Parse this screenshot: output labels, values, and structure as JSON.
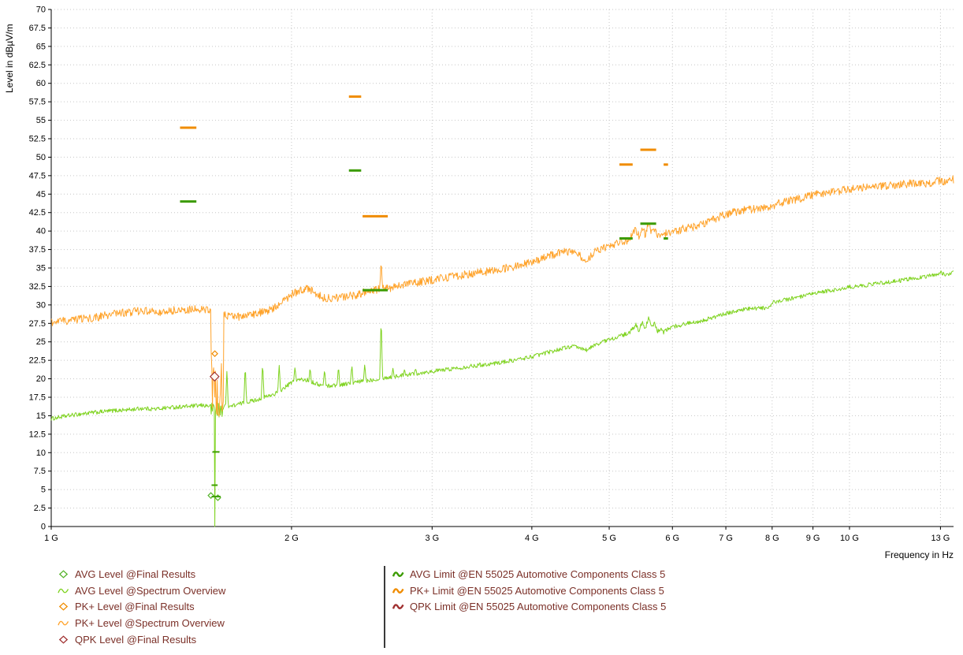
{
  "colors": {
    "grid": "#c6c6c6",
    "axis": "#000000",
    "background": "#ffffff"
  },
  "axes": {
    "y": {
      "title": "Level in dBµV/m",
      "min": 0,
      "max": 70,
      "step": 2.5,
      "tick_labels": [
        "0",
        "2.5",
        "5",
        "7.5",
        "10",
        "12.5",
        "15",
        "17.5",
        "20",
        "22.5",
        "25",
        "27.5",
        "30",
        "32.5",
        "35",
        "37.5",
        "40",
        "42.5",
        "45",
        "47.5",
        "50",
        "52.5",
        "55",
        "57.5",
        "60",
        "62.5",
        "65",
        "67.5",
        "70"
      ]
    },
    "x": {
      "title": "Frequency in Hz",
      "scale": "log",
      "min_hz": 1000000000.0,
      "max_hz": 13500000000.0,
      "ticks": [
        {
          "hz": 1000000000.0,
          "label": "1 G"
        },
        {
          "hz": 2000000000.0,
          "label": "2 G"
        },
        {
          "hz": 3000000000.0,
          "label": "3 G"
        },
        {
          "hz": 4000000000.0,
          "label": "4 G"
        },
        {
          "hz": 5000000000.0,
          "label": "5 G"
        },
        {
          "hz": 6000000000.0,
          "label": "6 G"
        },
        {
          "hz": 7000000000.0,
          "label": "7 G"
        },
        {
          "hz": 8000000000.0,
          "label": "8 G"
        },
        {
          "hz": 9000000000.0,
          "label": "9 G"
        },
        {
          "hz": 10000000000.0,
          "label": "10 G"
        },
        {
          "hz": 13000000000.0,
          "label": "13 G"
        }
      ]
    }
  },
  "chart_data": {
    "type": "line",
    "title": "",
    "x_unit": "GHz",
    "y_unit": "dBµV/m",
    "xlim_ghz": [
      1,
      13.5
    ],
    "ylim_db": [
      0,
      70
    ],
    "grid": "dotted",
    "series": [
      {
        "name": "AVG Level @Spectrum Overview",
        "color": "#7FD320",
        "noise_db": 0.28,
        "points_ghz_db": [
          [
            1.0,
            14.6
          ],
          [
            1.05,
            15.0
          ],
          [
            1.1,
            15.3
          ],
          [
            1.15,
            15.5
          ],
          [
            1.2,
            15.7
          ],
          [
            1.25,
            15.8
          ],
          [
            1.3,
            16.0
          ],
          [
            1.35,
            15.9
          ],
          [
            1.4,
            16.1
          ],
          [
            1.45,
            16.2
          ],
          [
            1.5,
            16.3
          ],
          [
            1.55,
            16.4
          ],
          [
            1.62,
            16.2
          ],
          [
            1.68,
            16.3
          ],
          [
            1.75,
            16.8
          ],
          [
            1.8,
            17.1
          ],
          [
            1.85,
            17.5
          ],
          [
            1.9,
            17.9
          ],
          [
            1.95,
            18.6
          ],
          [
            2.0,
            19.5
          ],
          [
            2.05,
            19.9
          ],
          [
            2.1,
            19.8
          ],
          [
            2.15,
            19.3
          ],
          [
            2.2,
            19.0
          ],
          [
            2.3,
            19.2
          ],
          [
            2.4,
            19.5
          ],
          [
            2.5,
            19.8
          ],
          [
            2.6,
            20.1
          ],
          [
            2.7,
            20.3
          ],
          [
            2.8,
            20.6
          ],
          [
            2.9,
            20.8
          ],
          [
            3.0,
            21.0
          ],
          [
            3.2,
            21.4
          ],
          [
            3.4,
            21.8
          ],
          [
            3.6,
            22.1
          ],
          [
            3.8,
            22.5
          ],
          [
            4.0,
            23.0
          ],
          [
            4.2,
            23.6
          ],
          [
            4.4,
            24.2
          ],
          [
            4.5,
            24.4
          ],
          [
            4.6,
            24.1
          ],
          [
            4.7,
            23.9
          ],
          [
            4.8,
            24.6
          ],
          [
            4.9,
            25.0
          ],
          [
            5.0,
            25.3
          ],
          [
            5.1,
            25.6
          ],
          [
            5.2,
            25.9
          ],
          [
            5.3,
            26.2
          ],
          [
            5.4,
            27.3
          ],
          [
            5.45,
            26.5
          ],
          [
            5.5,
            27.8
          ],
          [
            5.55,
            26.8
          ],
          [
            5.6,
            28.2
          ],
          [
            5.65,
            27.0
          ],
          [
            5.7,
            27.5
          ],
          [
            5.75,
            26.4
          ],
          [
            5.8,
            26.8
          ],
          [
            5.85,
            26.3
          ],
          [
            5.9,
            26.6
          ],
          [
            6.0,
            27.0
          ],
          [
            6.2,
            27.4
          ],
          [
            6.4,
            27.7
          ],
          [
            6.6,
            28.0
          ],
          [
            6.8,
            28.4
          ],
          [
            7.0,
            28.8
          ],
          [
            7.2,
            29.2
          ],
          [
            7.4,
            29.4
          ],
          [
            7.6,
            29.5
          ],
          [
            7.8,
            29.6
          ],
          [
            7.95,
            29.6
          ],
          [
            8.0,
            30.3
          ],
          [
            8.2,
            30.6
          ],
          [
            8.4,
            30.8
          ],
          [
            8.6,
            31.0
          ],
          [
            8.8,
            31.2
          ],
          [
            9.0,
            31.5
          ],
          [
            9.2,
            31.7
          ],
          [
            9.4,
            31.9
          ],
          [
            9.6,
            32.0
          ],
          [
            9.8,
            32.2
          ],
          [
            10.0,
            32.4
          ],
          [
            10.4,
            32.6
          ],
          [
            10.8,
            32.9
          ],
          [
            11.2,
            33.1
          ],
          [
            11.6,
            33.3
          ],
          [
            12.0,
            33.6
          ],
          [
            12.4,
            33.8
          ],
          [
            12.8,
            34.1
          ],
          [
            13.0,
            34.4
          ],
          [
            13.2,
            34.0
          ],
          [
            13.5,
            34.5
          ]
        ],
        "spikes_ghz_db": [
          [
            1.66,
            21.2
          ],
          [
            1.75,
            22.0
          ],
          [
            1.84,
            22.3
          ],
          [
            1.93,
            21.9
          ],
          [
            2.02,
            21.7
          ],
          [
            2.11,
            21.5
          ],
          [
            2.2,
            21.4
          ],
          [
            2.29,
            21.7
          ],
          [
            2.38,
            21.9
          ],
          [
            2.47,
            22.0
          ],
          [
            2.59,
            28.6
          ],
          [
            2.68,
            21.5
          ],
          [
            2.77,
            21.3
          ],
          [
            2.86,
            21.4
          ],
          [
            2.95,
            21.0
          ],
          [
            3.05,
            20.9
          ]
        ],
        "burst": {
          "from_ghz": 1.585,
          "to_ghz": 1.645,
          "min_db": 14.8,
          "max_db": 17.4
        },
        "drop_to_zero_ghz": 1.603
      },
      {
        "name": "PK+ Level @Spectrum Overview",
        "color": "#FFA32B",
        "noise_db": 0.55,
        "points_ghz_db": [
          [
            1.0,
            27.6
          ],
          [
            1.05,
            27.9
          ],
          [
            1.1,
            28.1
          ],
          [
            1.15,
            28.4
          ],
          [
            1.2,
            28.8
          ],
          [
            1.25,
            29.0
          ],
          [
            1.3,
            29.2
          ],
          [
            1.35,
            29.0
          ],
          [
            1.4,
            29.2
          ],
          [
            1.45,
            29.3
          ],
          [
            1.5,
            29.4
          ],
          [
            1.55,
            29.5
          ],
          [
            1.62,
            29.0
          ],
          [
            1.68,
            28.4
          ],
          [
            1.72,
            28.4
          ],
          [
            1.8,
            28.8
          ],
          [
            1.85,
            29.1
          ],
          [
            1.9,
            29.6
          ],
          [
            1.95,
            30.4
          ],
          [
            2.0,
            31.4
          ],
          [
            2.05,
            32.0
          ],
          [
            2.1,
            32.3
          ],
          [
            2.15,
            31.5
          ],
          [
            2.2,
            30.9
          ],
          [
            2.3,
            31.0
          ],
          [
            2.4,
            31.3
          ],
          [
            2.5,
            31.9
          ],
          [
            2.6,
            32.2
          ],
          [
            2.7,
            32.4
          ],
          [
            2.8,
            32.9
          ],
          [
            2.9,
            33.1
          ],
          [
            3.0,
            33.4
          ],
          [
            3.2,
            33.9
          ],
          [
            3.4,
            34.3
          ],
          [
            3.6,
            34.7
          ],
          [
            3.8,
            35.2
          ],
          [
            4.0,
            35.8
          ],
          [
            4.2,
            36.6
          ],
          [
            4.4,
            37.3
          ],
          [
            4.5,
            37.0
          ],
          [
            4.6,
            36.6
          ],
          [
            4.7,
            35.9
          ],
          [
            4.75,
            36.8
          ],
          [
            4.8,
            37.3
          ],
          [
            4.9,
            37.7
          ],
          [
            5.0,
            38.0
          ],
          [
            5.1,
            38.3
          ],
          [
            5.2,
            38.6
          ],
          [
            5.3,
            38.8
          ],
          [
            5.4,
            40.2
          ],
          [
            5.45,
            39.2
          ],
          [
            5.5,
            40.5
          ],
          [
            5.55,
            39.5
          ],
          [
            5.6,
            41.0
          ],
          [
            5.65,
            39.8
          ],
          [
            5.7,
            40.3
          ],
          [
            5.75,
            39.3
          ],
          [
            5.8,
            39.8
          ],
          [
            5.85,
            39.5
          ],
          [
            5.9,
            39.8
          ],
          [
            6.0,
            39.9
          ],
          [
            6.2,
            40.3
          ],
          [
            6.4,
            40.6
          ],
          [
            6.6,
            41.1
          ],
          [
            6.8,
            41.7
          ],
          [
            7.0,
            42.3
          ],
          [
            7.2,
            42.6
          ],
          [
            7.4,
            42.9
          ],
          [
            7.6,
            43.0
          ],
          [
            7.8,
            43.2
          ],
          [
            7.95,
            43.0
          ],
          [
            8.0,
            43.4
          ],
          [
            8.2,
            43.8
          ],
          [
            8.4,
            44.1
          ],
          [
            8.6,
            44.3
          ],
          [
            8.8,
            44.5
          ],
          [
            9.0,
            44.9
          ],
          [
            9.2,
            45.0
          ],
          [
            9.4,
            45.2
          ],
          [
            9.6,
            45.3
          ],
          [
            9.8,
            45.5
          ],
          [
            10.0,
            45.7
          ],
          [
            10.4,
            45.9
          ],
          [
            10.8,
            46.1
          ],
          [
            11.2,
            46.2
          ],
          [
            11.6,
            46.3
          ],
          [
            12.0,
            46.5
          ],
          [
            12.4,
            46.4
          ],
          [
            12.8,
            46.7
          ],
          [
            13.0,
            46.9
          ],
          [
            13.2,
            46.6
          ],
          [
            13.5,
            47.0
          ]
        ],
        "spikes_ghz_db": [
          [
            2.59,
            36.2
          ]
        ],
        "burst": {
          "from_ghz": 1.585,
          "to_ghz": 1.645,
          "min_db": 14.0,
          "max_db": 23.5
        }
      }
    ],
    "limits": [
      {
        "name": "PK+ Limit @EN 55025 Automotive Components Class 5",
        "color": "#F08C00",
        "segments": [
          {
            "from_ghz": 1.45,
            "to_ghz": 1.52,
            "db": 54
          },
          {
            "from_ghz": 2.36,
            "to_ghz": 2.445,
            "db": 58.2
          },
          {
            "from_ghz": 2.455,
            "to_ghz": 2.64,
            "db": 42
          },
          {
            "from_ghz": 5.15,
            "to_ghz": 5.35,
            "db": 49
          },
          {
            "from_ghz": 5.47,
            "to_ghz": 5.725,
            "db": 51
          },
          {
            "from_ghz": 5.85,
            "to_ghz": 5.925,
            "db": 49
          }
        ]
      },
      {
        "name": "AVG Limit @EN 55025 Automotive Components Class 5",
        "color": "#3B9B00",
        "segments": [
          {
            "from_ghz": 1.45,
            "to_ghz": 1.52,
            "db": 44
          },
          {
            "from_ghz": 2.36,
            "to_ghz": 2.445,
            "db": 48.2
          },
          {
            "from_ghz": 2.455,
            "to_ghz": 2.64,
            "db": 32
          },
          {
            "from_ghz": 5.15,
            "to_ghz": 5.35,
            "db": 39
          },
          {
            "from_ghz": 5.47,
            "to_ghz": 5.725,
            "db": 41
          },
          {
            "from_ghz": 5.85,
            "to_ghz": 5.925,
            "db": 39
          }
        ]
      },
      {
        "name": "QPK Limit @EN 55025 Automotive Components Class 5",
        "color": "#A03030",
        "segments": []
      }
    ],
    "markers": [
      {
        "type": "diamond",
        "series": "QPK Level @Final Results",
        "color": "#A03030",
        "ghz": 1.602,
        "db": 20.3,
        "size": 11
      },
      {
        "type": "diamond",
        "series": "PK+ Level @Final Results",
        "color": "#F08C00",
        "ghz": 1.603,
        "db": 23.4,
        "size": 7
      },
      {
        "type": "diamond",
        "series": "AVG Level @Final Results",
        "color": "#54B32A",
        "ghz": 1.585,
        "db": 4.2,
        "size": 7
      },
      {
        "type": "diamond",
        "series": "AVG Level @Final Results",
        "color": "#54B32A",
        "ghz": 1.617,
        "db": 3.9,
        "size": 7
      },
      {
        "type": "dash",
        "series": "AVG Level @Final Results",
        "color": "#3FA000",
        "from_ghz": 1.592,
        "to_ghz": 1.625,
        "db": 10.1
      },
      {
        "type": "dash",
        "series": "AVG Level @Final Results",
        "color": "#3FA000",
        "from_ghz": 1.588,
        "to_ghz": 1.616,
        "db": 5.6
      },
      {
        "type": "dash",
        "series": "AVG Level @Final Results",
        "color": "#3FA000",
        "from_ghz": 1.588,
        "to_ghz": 1.63,
        "db": 4.05
      }
    ]
  },
  "legend": {
    "text_color": "#7B3028",
    "left": [
      {
        "icon": "diamond",
        "color": "#54B32A",
        "label": "AVG Level @Final Results"
      },
      {
        "icon": "wave",
        "color": "#7FD320",
        "label": "AVG Level @Spectrum Overview"
      },
      {
        "icon": "diamond",
        "color": "#F08C00",
        "label": "PK+ Level @Final Results"
      },
      {
        "icon": "wave",
        "color": "#FFA32B",
        "label": "PK+ Level @Spectrum Overview"
      },
      {
        "icon": "diamond",
        "color": "#A03030",
        "label": "QPK Level @Final Results"
      }
    ],
    "right": [
      {
        "icon": "wave-bold",
        "color": "#3B9B00",
        "label": "AVG Limit @EN 55025 Automotive Components Class 5"
      },
      {
        "icon": "wave-bold",
        "color": "#F08C00",
        "label": "PK+ Limit @EN 55025 Automotive Components Class 5"
      },
      {
        "icon": "wave-bold",
        "color": "#A03030",
        "label": "QPK Limit @EN 55025 Automotive Components Class 5"
      }
    ]
  }
}
